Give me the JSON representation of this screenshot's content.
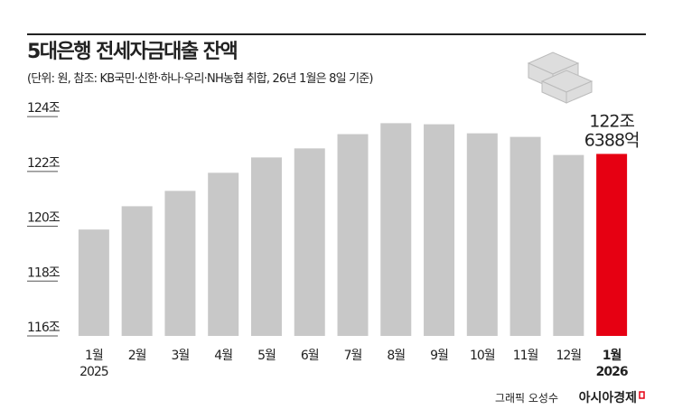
{
  "chart_data": {
    "type": "bar",
    "title": "5대은행 전세자금대출 잔액",
    "subtitle": "(단위: 원, 참조: KB국민·신한·하나·우리·NH농협 취합, 26년 1월은 8일 기준)",
    "categories": [
      "1월",
      "2월",
      "3월",
      "4월",
      "5월",
      "6월",
      "7월",
      "8월",
      "9월",
      "10월",
      "11월",
      "12월",
      "1월"
    ],
    "category_years": [
      "2025",
      null,
      null,
      null,
      null,
      null,
      null,
      null,
      null,
      null,
      null,
      null,
      "2026"
    ],
    "values": [
      119.88,
      120.73,
      121.29,
      121.95,
      122.51,
      122.84,
      123.36,
      123.76,
      123.72,
      123.39,
      123.26,
      122.6,
      122.6388
    ],
    "value_labels": [
      null,
      null,
      null,
      null,
      null,
      null,
      null,
      null,
      null,
      null,
      null,
      null,
      "122조 6388억"
    ],
    "color": "#c8c8c8",
    "highlight_color": "#e60012",
    "highlight_index": 12,
    "ylim": [
      116,
      124.3
    ],
    "yticks": [
      {
        "value": 116,
        "label": "116조"
      },
      {
        "value": 118,
        "label": "118조"
      },
      {
        "value": 120,
        "label": "120조"
      },
      {
        "value": 122,
        "label": "122조"
      },
      {
        "value": 124,
        "label": "124조"
      }
    ],
    "credit": "그래픽 오성수",
    "source": "아시아경제"
  }
}
